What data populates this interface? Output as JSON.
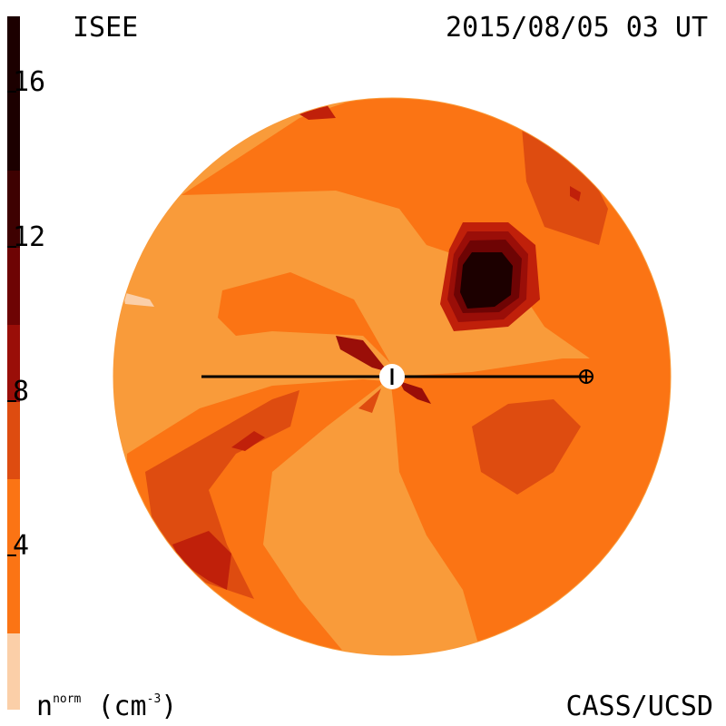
{
  "header": {
    "observatory": "ISEE",
    "datetime": "2015/08/05 03 UT"
  },
  "footer": {
    "credit": "CASS/UCSD"
  },
  "colorbar": {
    "unit_label_base": "n",
    "unit_label_sup": "norm",
    "unit_label_paren": "(cm",
    "unit_label_exp": "-3",
    "unit_label_close": ")",
    "ticks": [
      "16",
      "12",
      "8",
      "4"
    ],
    "colors": [
      "#fbcfa8",
      "#f99b3a",
      "#fb7414",
      "#de4c10",
      "#c0200a",
      "#9a0e08",
      "#6e0404",
      "#3e0101",
      "#1c0000"
    ]
  },
  "map": {
    "disk_color_background": "#f99b3a",
    "observer_marker": "earth-symbol",
    "sun_marker": "sun-center"
  }
}
